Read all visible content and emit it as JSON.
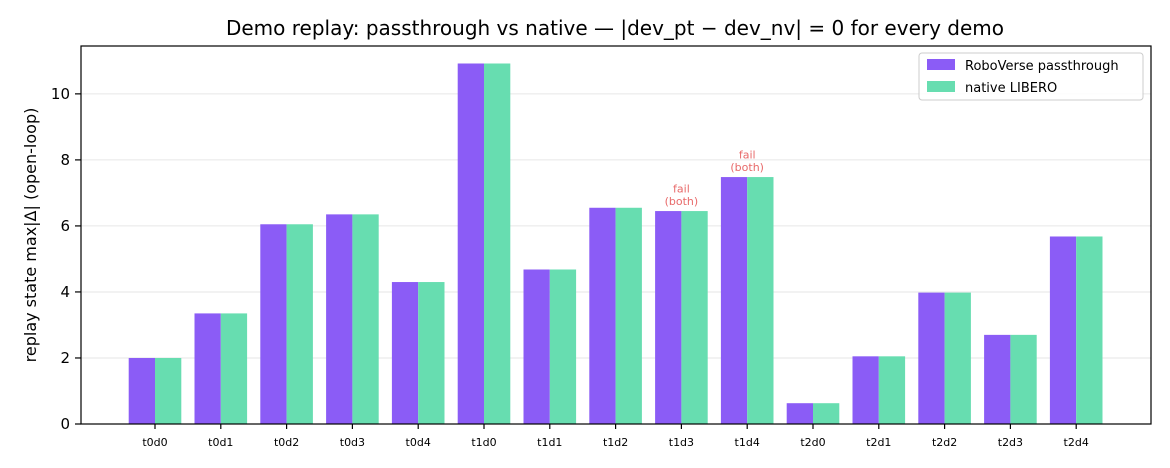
{
  "chart_data": {
    "type": "bar",
    "title": "Demo replay: passthrough vs native — |dev_pt − dev_nv| = 0 for every demo",
    "xlabel": "",
    "ylabel": "replay state max|Δ|  (open-loop)",
    "categories": [
      "t0d0",
      "t0d1",
      "t0d2",
      "t0d3",
      "t0d4",
      "t1d0",
      "t1d1",
      "t1d2",
      "t1d3",
      "t1d4",
      "t2d0",
      "t2d1",
      "t2d2",
      "t2d3",
      "t2d4"
    ],
    "series": [
      {
        "name": "RoboVerse passthrough",
        "color": "#8b5cf6",
        "values": [
          2.0,
          3.35,
          6.05,
          6.35,
          4.3,
          10.92,
          4.68,
          6.55,
          6.45,
          7.48,
          0.63,
          2.05,
          3.98,
          2.7,
          5.68
        ]
      },
      {
        "name": "native LIBERO",
        "color": "#67ddb0",
        "values": [
          2.0,
          3.35,
          6.05,
          6.35,
          4.3,
          10.92,
          4.68,
          6.55,
          6.45,
          7.48,
          0.63,
          2.05,
          3.98,
          2.7,
          5.68
        ]
      }
    ],
    "annotations": [
      {
        "category": "t1d3",
        "lines": [
          "fail",
          "(both)"
        ],
        "color": "#e86a6a"
      },
      {
        "category": "t1d4",
        "lines": [
          "fail",
          "(both)"
        ],
        "color": "#e86a6a"
      }
    ],
    "ylim": [
      0,
      11.45
    ],
    "yticks": [
      0,
      2,
      4,
      6,
      8,
      10
    ],
    "grid": "horizontal",
    "legend_position": "top-right"
  }
}
